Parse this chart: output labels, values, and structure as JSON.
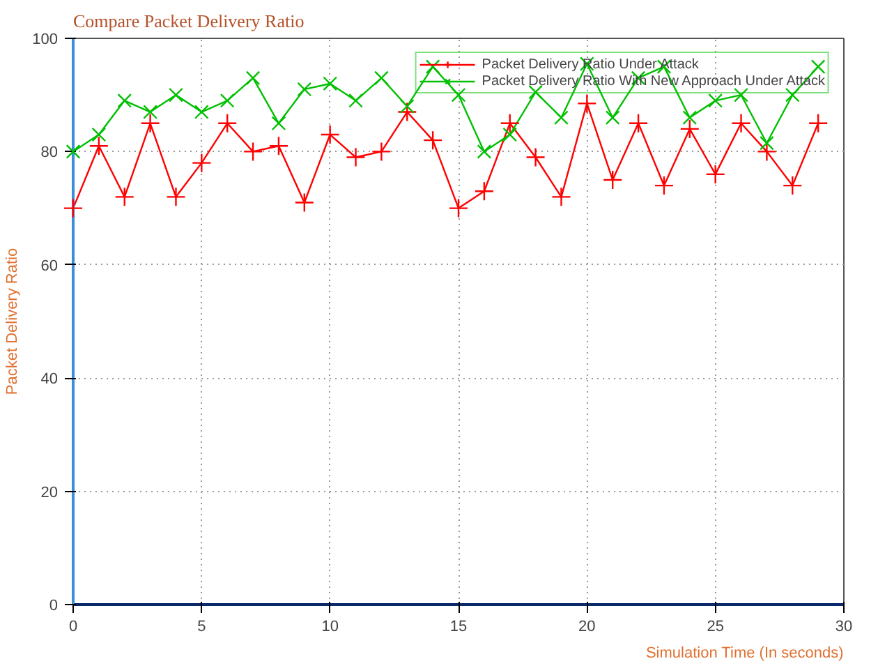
{
  "chart_data": {
    "type": "line",
    "title": "Compare Packet Delivery Ratio",
    "xlabel": "Simulation Time (In seconds)",
    "ylabel": "Packet Delivery Ratio",
    "x": [
      0,
      1,
      2,
      3,
      4,
      5,
      6,
      7,
      8,
      9,
      10,
      11,
      12,
      13,
      14,
      15,
      16,
      17,
      18,
      19,
      20,
      21,
      22,
      23,
      24,
      25,
      26,
      27,
      28,
      29
    ],
    "series": [
      {
        "name": "Packet Delivery Ratio Under Attack",
        "color": "#ff0000",
        "marker": "cross",
        "values": [
          70,
          81,
          72,
          85,
          72,
          78,
          85,
          80,
          81,
          71,
          83,
          79,
          80,
          87,
          82,
          70,
          73,
          85,
          79,
          72,
          88.5,
          75,
          85,
          74,
          84,
          76,
          85,
          80,
          74,
          85
        ]
      },
      {
        "name": "Packet Delivery Ratio With New Approach Under Attack",
        "color": "#00c000",
        "marker": "x",
        "values": [
          80,
          83,
          89,
          87,
          90,
          87,
          89,
          93,
          85,
          91,
          92,
          89,
          93,
          88,
          95,
          90,
          80,
          83,
          90.5,
          86,
          95.5,
          86,
          93,
          95,
          86,
          89,
          90,
          81.5,
          90,
          95
        ]
      }
    ],
    "xlim": [
      0,
      30
    ],
    "ylim": [
      0,
      100
    ],
    "xticks": [
      0,
      5,
      10,
      15,
      20,
      25,
      30
    ],
    "yticks": [
      0,
      20,
      40,
      60,
      80,
      100
    ],
    "grid": true,
    "legend": "top right",
    "line_style": "solid"
  }
}
